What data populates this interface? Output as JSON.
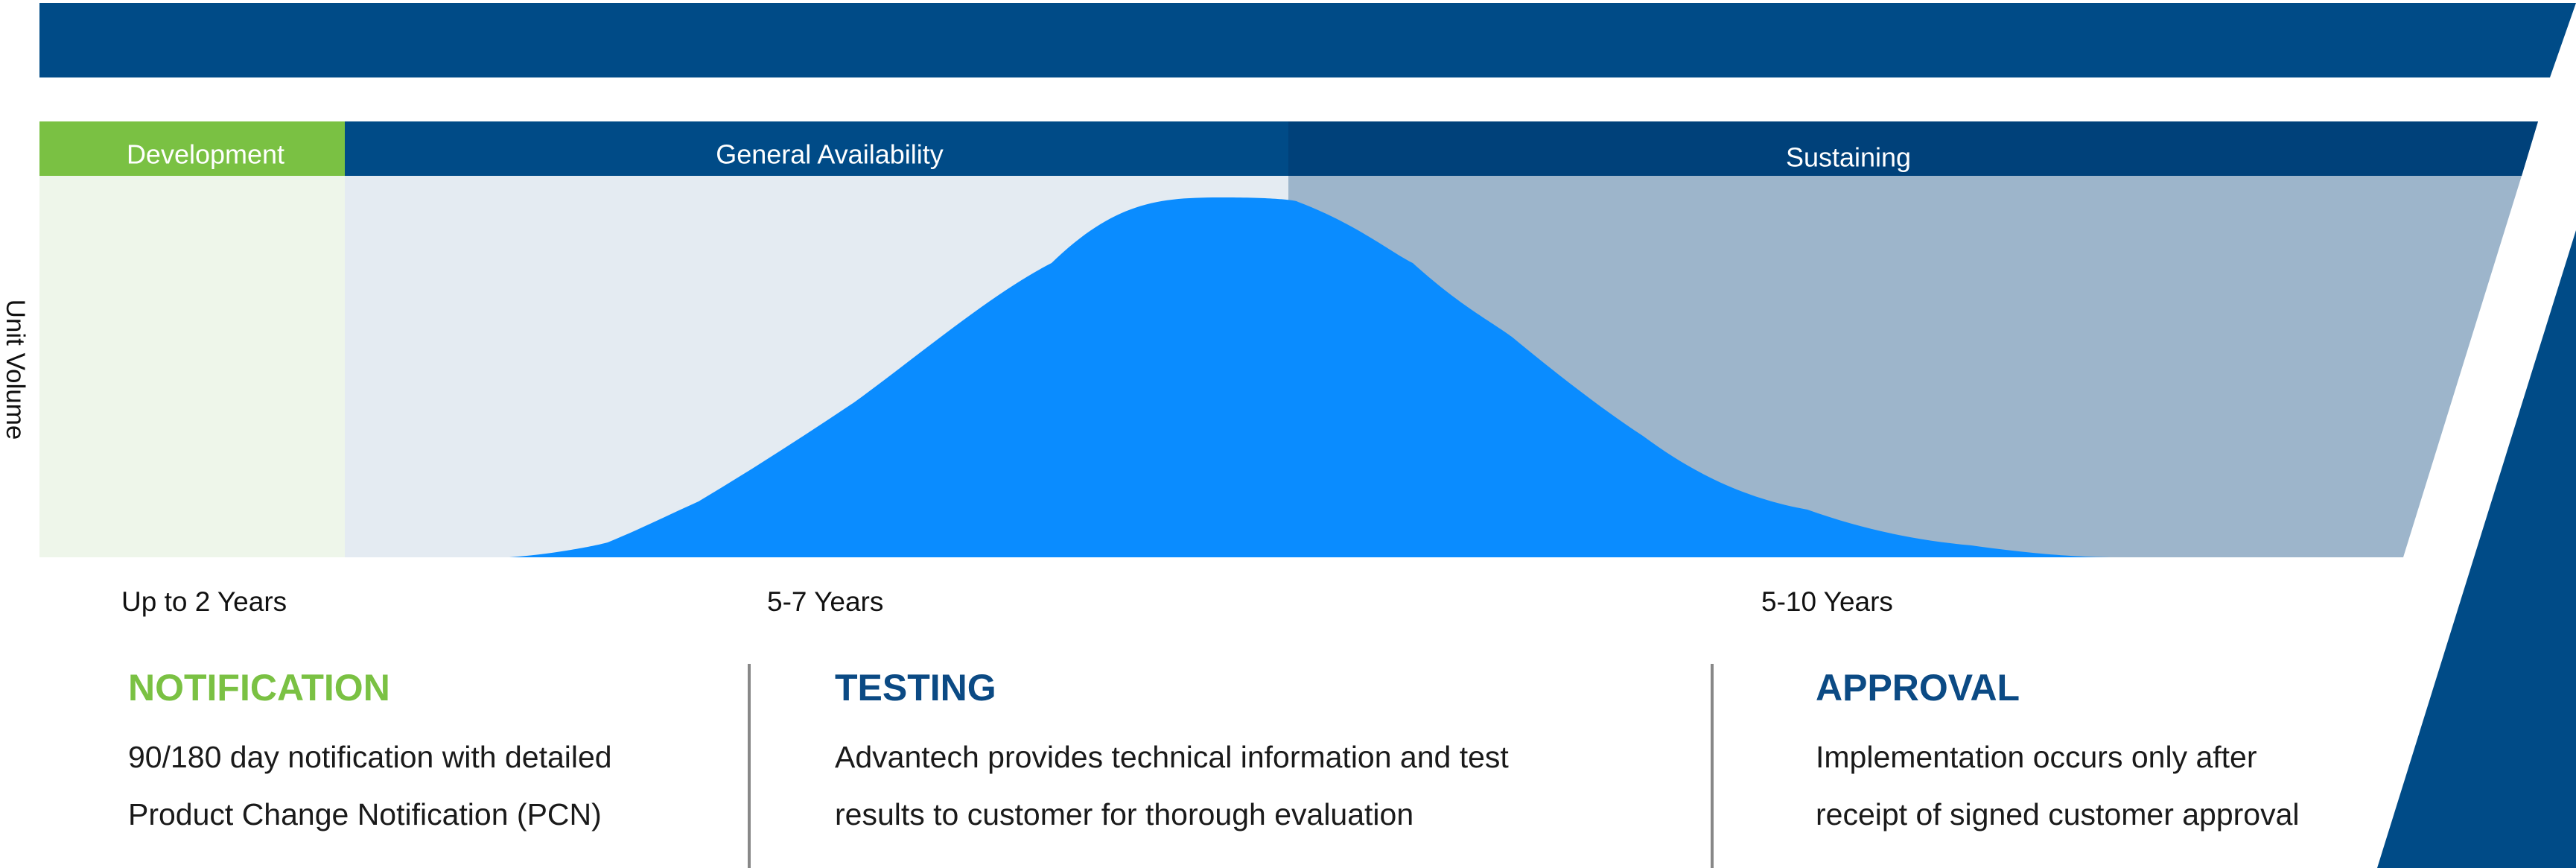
{
  "axis_label": "Unit Volume",
  "phases": [
    {
      "label": "Development",
      "duration": "Up to 2 Years"
    },
    {
      "label": "General Availability",
      "duration": "5-7 Years"
    },
    {
      "label": "Sustaining",
      "duration": "5-10 Years"
    }
  ],
  "steps": [
    {
      "title": "NOTIFICATION",
      "lines": [
        "90/180 day notification with detailed",
        "Product Change Notification (PCN)"
      ]
    },
    {
      "title": "TESTING",
      "lines": [
        "Advantech provides technical information and test",
        "results to customer for thorough evaluation"
      ]
    },
    {
      "title": "APPROVAL",
      "lines": [
        "Implementation occurs only after",
        "receipt of signed customer approval"
      ]
    }
  ]
}
